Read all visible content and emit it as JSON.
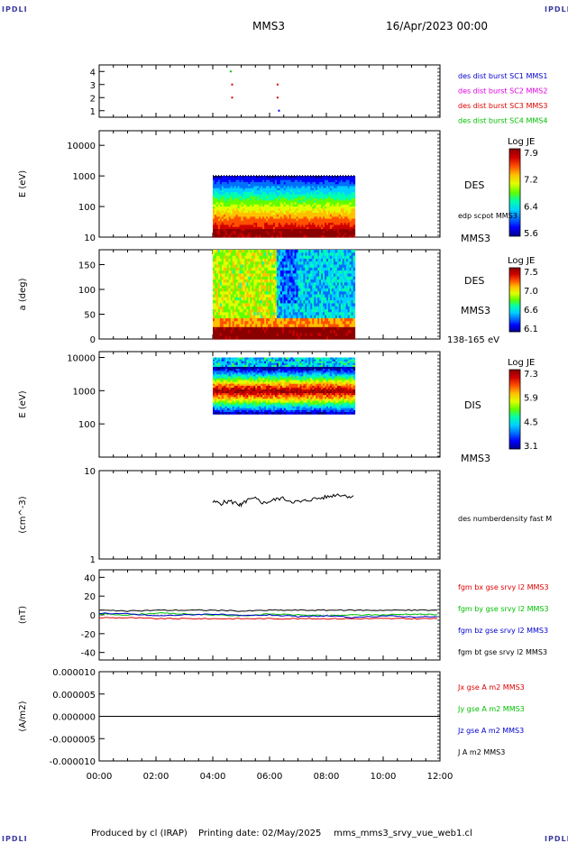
{
  "header": {
    "logo": "IPDLI",
    "title": "MMS3",
    "date": "16/Apr/2023 00:00"
  },
  "footer": {
    "credit": "Produced by cl (IRAP)",
    "printing": "Printing date: 02/May/2025",
    "file": "mms_mms3_srvy_vue_web1.cl"
  },
  "colors": {
    "blue": "#0000d0",
    "magenta": "#e000e0",
    "red": "#e00000",
    "green": "#00c000",
    "black": "#000000"
  },
  "colormap": [
    "#00008b",
    "#0000ff",
    "#0070ff",
    "#00d0ff",
    "#00ffb0",
    "#60ff00",
    "#e0ff00",
    "#ffc000",
    "#ff5000",
    "#d00000",
    "#8b0000"
  ],
  "chart_data": [
    {
      "type": "scatter",
      "panel": "burst-flags",
      "ylim": [
        0.5,
        4.5
      ],
      "ytick_labels": [
        "4",
        "3",
        "2",
        "1"
      ],
      "legend": [
        "des dist burst SC1 MMS1",
        "des dist burst SC2 MMS2",
        "des dist burst SC3 MMS3",
        "des dist burst SC4 MMS4"
      ],
      "legend_colors": [
        "#0000d0",
        "#e000e0",
        "#e00000",
        "#00c000"
      ],
      "points": [
        {
          "x": 4.6,
          "y": 4,
          "sc": 4
        },
        {
          "x": 4.65,
          "y": 3,
          "sc": 3
        },
        {
          "x": 4.65,
          "y": 2,
          "sc": 3
        },
        {
          "x": 6.25,
          "y": 3,
          "sc": 3
        },
        {
          "x": 6.25,
          "y": 2,
          "sc": 3
        },
        {
          "x": 6.3,
          "y": 1,
          "sc": 1
        }
      ]
    },
    {
      "type": "heatmap",
      "panel": "des-energy",
      "ylabel": "E (eV)",
      "ytick_labels": [
        "10000",
        "1000",
        "100",
        "10"
      ],
      "yscale": "log",
      "ylim": [
        10,
        30000
      ],
      "xrange_data": [
        4.0,
        9.0
      ],
      "yrange_data": [
        10,
        1000
      ],
      "colorbar": {
        "title": "Log JE",
        "min": 5.6,
        "max": 7.9,
        "tick_labels": [
          "7.9",
          "7.2",
          "6.4",
          "5.6"
        ]
      },
      "labels": [
        "DES",
        "edp scpot MMS3",
        "MMS3"
      ]
    },
    {
      "type": "heatmap",
      "panel": "des-pitch-angle",
      "ylabel": "a (deg)",
      "ytick_labels": [
        "150",
        "100",
        "50",
        "0"
      ],
      "ylim": [
        0,
        180
      ],
      "xrange_data": [
        4.0,
        9.0
      ],
      "yrange_data": [
        0,
        180
      ],
      "colorbar": {
        "title": "Log JE",
        "min": 6.1,
        "max": 7.5,
        "tick_labels": [
          "7.5",
          "7.0",
          "6.6",
          "6.1"
        ]
      },
      "labels": [
        "DES",
        "MMS3",
        "138-165 eV"
      ]
    },
    {
      "type": "heatmap",
      "panel": "dis-energy",
      "ylabel": "E (eV)",
      "ytick_labels": [
        "10000",
        "1000",
        "100"
      ],
      "yscale": "log",
      "ylim": [
        10,
        15000
      ],
      "xrange_data": [
        4.0,
        9.0
      ],
      "yrange_data": [
        200,
        10000
      ],
      "colorbar": {
        "title": "Log JE",
        "min": 3.1,
        "max": 7.3,
        "tick_labels": [
          "7.3",
          "5.9",
          "4.5",
          "3.1"
        ]
      },
      "labels": [
        "DIS",
        "MMS3"
      ]
    },
    {
      "type": "line",
      "panel": "density",
      "ylabel": "(cm^-3)",
      "ytick_labels": [
        "10",
        "1"
      ],
      "yscale": "log",
      "ylim": [
        1,
        10
      ],
      "series": [
        {
          "name": "des numberdensity fast M",
          "color": "#000000",
          "x": [
            4.0,
            4.3,
            4.6,
            4.9,
            5.0,
            5.2,
            5.5,
            5.8,
            6.1,
            6.4,
            6.8,
            7.1,
            7.4,
            7.8,
            8.1,
            8.4,
            8.7,
            9.0
          ],
          "y": [
            4.4,
            4.3,
            4.5,
            4.2,
            4.0,
            4.6,
            4.8,
            4.3,
            4.6,
            4.9,
            4.5,
            4.4,
            4.7,
            4.9,
            5.1,
            5.4,
            5.2,
            5.0
          ]
        }
      ]
    },
    {
      "type": "line",
      "panel": "magnetic-field",
      "ylabel": "(nT)",
      "ytick_labels": [
        "40",
        "20",
        "0",
        "-20",
        "-40"
      ],
      "ylim": [
        -48,
        48
      ],
      "x": [
        0,
        1,
        2,
        3,
        4,
        5,
        6,
        7,
        8,
        9,
        10,
        11,
        12
      ],
      "series": [
        {
          "name": "fgm bx gse srvy l2 MMS3",
          "color": "#e00000",
          "y": [
            -3,
            -3,
            -4,
            -4,
            -4,
            -4,
            -4,
            -4,
            -4,
            -4,
            -4,
            -4,
            -4
          ]
        },
        {
          "name": "fgm by gse srvy l2 MMS3",
          "color": "#00c000",
          "y": [
            1,
            0,
            2,
            1,
            0,
            -1,
            1,
            0,
            -1,
            0,
            0,
            1,
            0
          ]
        },
        {
          "name": "fgm bz gse srvy l2 MMS3",
          "color": "#0000d0",
          "y": [
            2,
            1,
            -1,
            0,
            1,
            -1,
            0,
            -2,
            -1,
            -3,
            -1,
            -2,
            -2
          ]
        },
        {
          "name": "fgm bt gse srvy l2 MMS3",
          "color": "#000000",
          "y": [
            5,
            4,
            5,
            5,
            5,
            4,
            5,
            5,
            5,
            5,
            5,
            5,
            5
          ]
        }
      ]
    },
    {
      "type": "line",
      "panel": "current-density",
      "ylabel": "(A/m2)",
      "ytick_labels": [
        "0.000010",
        "0.000005",
        "0.000000",
        "-0.000005",
        "-0.000010"
      ],
      "ylim": [
        -1e-05,
        1e-05
      ],
      "x": [
        0,
        12
      ],
      "series": [
        {
          "name": "Jx gse A m2 MMS3",
          "color": "#e00000",
          "y": [
            0,
            0
          ]
        },
        {
          "name": "Jy gse A m2 MMS3",
          "color": "#00c000",
          "y": [
            0,
            0
          ]
        },
        {
          "name": "Jz gse A m2 MMS3",
          "color": "#0000d0",
          "y": [
            0,
            0
          ]
        },
        {
          "name": "J A m2 MMS3",
          "color": "#000000",
          "y": [
            0,
            0
          ]
        }
      ]
    }
  ],
  "xaxis": {
    "range": [
      0,
      12
    ],
    "tick_labels": [
      "00:00",
      "02:00",
      "04:00",
      "06:00",
      "08:00",
      "10:00",
      "12:00"
    ]
  }
}
